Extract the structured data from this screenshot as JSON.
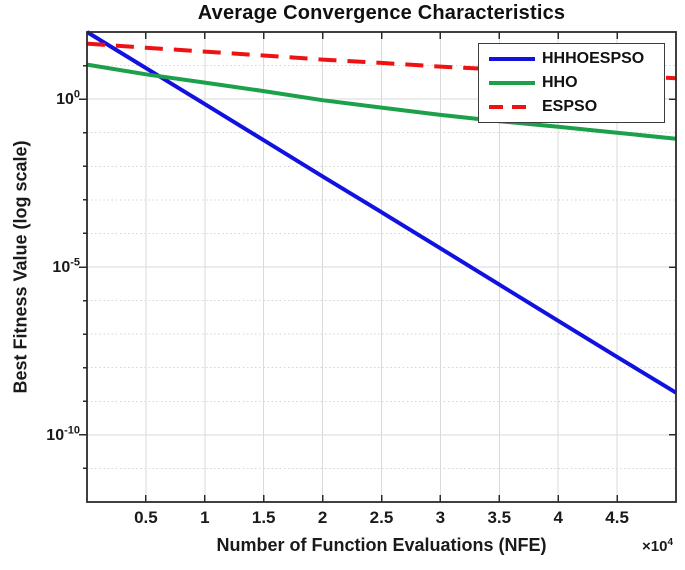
{
  "title": "Average Convergence Characteristics",
  "axes": {
    "xlabel": "Number of Function Evaluations (NFE)",
    "ylabel": "Best Fitness Value (log scale)",
    "y_tick_base": "10",
    "x_multiplier_base": "×10",
    "x_multiplier_exp": "4"
  },
  "chart_data": {
    "type": "line",
    "title": "Average Convergence Characteristics",
    "xlabel": "Number of Function Evaluations (NFE)",
    "ylabel": "Best Fitness Value (log scale)",
    "x_scale": "linear",
    "y_scale": "log",
    "xlim": [
      0,
      50000
    ],
    "ylim": [
      1e-12,
      100
    ],
    "x_axis_multiplier": 10000,
    "x_tick_values": [
      5000,
      10000,
      15000,
      20000,
      25000,
      30000,
      35000,
      40000,
      45000
    ],
    "x_tick_labels": [
      "0.5",
      "1",
      "1.5",
      "2",
      "2.5",
      "3",
      "3.5",
      "4",
      "4.5"
    ],
    "y_tick_exponents": [
      0,
      -5,
      -10
    ],
    "grid": true,
    "minor_grid": "dotted horizontal at every decade",
    "legend_position": "northeast",
    "frame_color": "#2b2b2b",
    "grid_color": "#dadada",
    "x": [
      0,
      5000,
      10000,
      15000,
      20000,
      25000,
      30000,
      35000,
      40000,
      45000,
      50000
    ],
    "series": [
      {
        "name": "HHHOESPSO",
        "color": "#1212e0",
        "style": "solid",
        "values": [
          100,
          8.4,
          0.71,
          0.06,
          0.005,
          0.00043,
          3.6e-05,
          3e-06,
          2.5e-07,
          2.1e-08,
          1.8e-09
        ]
      },
      {
        "name": "HHO",
        "color": "#1ca049",
        "style": "solid",
        "values": [
          10.7,
          5.5,
          3.1,
          1.74,
          0.93,
          0.56,
          0.34,
          0.22,
          0.15,
          0.1,
          0.066
        ]
      },
      {
        "name": "ESPSO",
        "color": "#ee1212",
        "style": "dashed",
        "values": [
          45,
          34,
          26,
          20,
          15.1,
          12,
          9.3,
          7.6,
          6.2,
          5.1,
          4.2
        ]
      }
    ]
  }
}
